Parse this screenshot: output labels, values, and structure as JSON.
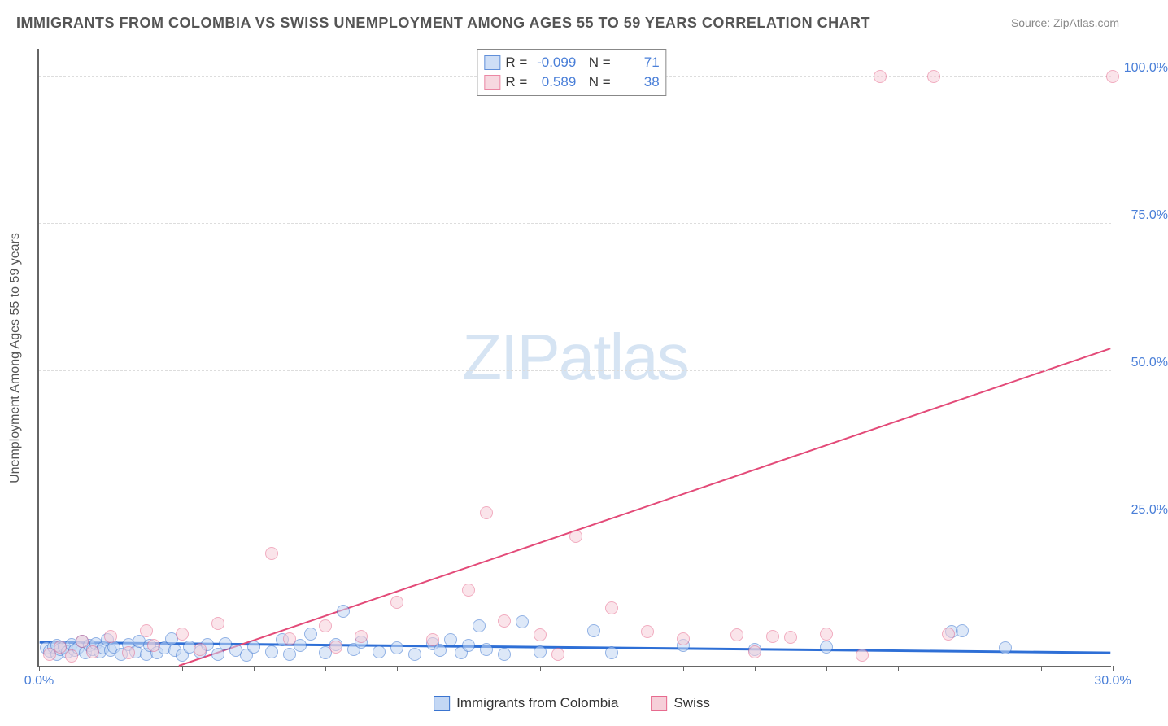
{
  "title": "IMMIGRANTS FROM COLOMBIA VS SWISS UNEMPLOYMENT AMONG AGES 55 TO 59 YEARS CORRELATION CHART",
  "source": "Source: ZipAtlas.com",
  "ylabel": "Unemployment Among Ages 55 to 59 years",
  "watermark_bold": "ZIP",
  "watermark_light": "atlas",
  "chart": {
    "type": "scatter",
    "background_color": "#ffffff",
    "grid_color": "#dddddd",
    "axis_color": "#666666",
    "tick_label_color": "#4a7fd8",
    "xlim": [
      0,
      30
    ],
    "ylim": [
      0,
      105
    ],
    "xtick_start_label": "0.0%",
    "xtick_end_label": "30.0%",
    "xtick_minor_step": 2,
    "yticks": [
      {
        "v": 25,
        "label": "25.0%"
      },
      {
        "v": 50,
        "label": "50.0%"
      },
      {
        "v": 75,
        "label": "75.0%"
      },
      {
        "v": 100,
        "label": "100.0%"
      }
    ],
    "point_radius": 8,
    "point_stroke_width": 1.5,
    "series": [
      {
        "name": "Immigrants from Colombia",
        "fill": "#c3d7f4",
        "stroke": "#3a74d0",
        "fill_opacity": 0.55,
        "r_value": "-0.099",
        "n_value": "71",
        "trend": {
          "x1": 0,
          "y1": 4.0,
          "x2": 30,
          "y2": 2.2,
          "color": "#2e6fd6",
          "width": 3
        },
        "points": [
          [
            0.2,
            3.0
          ],
          [
            0.3,
            2.5
          ],
          [
            0.4,
            3.2
          ],
          [
            0.5,
            2.0
          ],
          [
            0.5,
            3.5
          ],
          [
            0.6,
            2.8
          ],
          [
            0.7,
            3.2
          ],
          [
            0.8,
            2.4
          ],
          [
            0.9,
            3.6
          ],
          [
            1.0,
            2.6
          ],
          [
            1.1,
            3.0
          ],
          [
            1.2,
            4.1
          ],
          [
            1.3,
            2.2
          ],
          [
            1.4,
            3.4
          ],
          [
            1.5,
            2.8
          ],
          [
            1.6,
            3.8
          ],
          [
            1.7,
            2.4
          ],
          [
            1.8,
            3.0
          ],
          [
            1.9,
            4.4
          ],
          [
            2.0,
            2.6
          ],
          [
            2.1,
            3.2
          ],
          [
            2.3,
            2.0
          ],
          [
            2.5,
            3.6
          ],
          [
            2.7,
            2.4
          ],
          [
            2.8,
            4.2
          ],
          [
            3.0,
            2.0
          ],
          [
            3.1,
            3.4
          ],
          [
            3.3,
            2.2
          ],
          [
            3.5,
            3.0
          ],
          [
            3.7,
            4.6
          ],
          [
            3.8,
            2.6
          ],
          [
            4.0,
            1.8
          ],
          [
            4.2,
            3.2
          ],
          [
            4.5,
            2.4
          ],
          [
            4.7,
            3.6
          ],
          [
            5.0,
            2.0
          ],
          [
            5.2,
            3.8
          ],
          [
            5.5,
            2.6
          ],
          [
            5.8,
            1.8
          ],
          [
            6.0,
            3.2
          ],
          [
            6.5,
            2.4
          ],
          [
            6.8,
            4.4
          ],
          [
            7.0,
            2.0
          ],
          [
            7.3,
            3.4
          ],
          [
            7.6,
            5.4
          ],
          [
            8.0,
            2.2
          ],
          [
            8.3,
            3.6
          ],
          [
            8.5,
            9.2
          ],
          [
            8.8,
            2.8
          ],
          [
            9.0,
            4.0
          ],
          [
            9.5,
            2.4
          ],
          [
            10.0,
            3.0
          ],
          [
            10.5,
            2.0
          ],
          [
            11.0,
            3.8
          ],
          [
            11.2,
            2.6
          ],
          [
            11.5,
            4.4
          ],
          [
            11.8,
            2.2
          ],
          [
            12.0,
            3.4
          ],
          [
            12.3,
            6.8
          ],
          [
            12.5,
            2.8
          ],
          [
            13.0,
            2.0
          ],
          [
            13.5,
            7.4
          ],
          [
            14.0,
            2.4
          ],
          [
            15.5,
            6.0
          ],
          [
            16.0,
            2.2
          ],
          [
            18.0,
            3.5
          ],
          [
            20.0,
            2.8
          ],
          [
            22.0,
            3.2
          ],
          [
            25.5,
            5.8
          ],
          [
            25.8,
            6.0
          ],
          [
            27.0,
            3.0
          ]
        ]
      },
      {
        "name": "Swiss",
        "fill": "#f6cfd9",
        "stroke": "#e76a8e",
        "fill_opacity": 0.55,
        "r_value": "0.589",
        "n_value": "38",
        "trend": {
          "x1": 3.9,
          "y1": 0,
          "x2": 30,
          "y2": 54.0,
          "color": "#e34a78",
          "width": 2
        },
        "points": [
          [
            0.3,
            2.0
          ],
          [
            0.6,
            3.2
          ],
          [
            0.9,
            1.6
          ],
          [
            1.2,
            4.2
          ],
          [
            1.5,
            2.4
          ],
          [
            2.0,
            5.0
          ],
          [
            2.5,
            2.2
          ],
          [
            3.0,
            6.0
          ],
          [
            3.2,
            3.4
          ],
          [
            4.0,
            5.4
          ],
          [
            4.5,
            2.8
          ],
          [
            5.0,
            7.2
          ],
          [
            6.5,
            19.0
          ],
          [
            7.0,
            4.6
          ],
          [
            8.0,
            6.8
          ],
          [
            8.3,
            3.2
          ],
          [
            9.0,
            5.0
          ],
          [
            10.0,
            10.8
          ],
          [
            11.0,
            4.4
          ],
          [
            12.0,
            12.8
          ],
          [
            12.5,
            26.0
          ],
          [
            13.0,
            7.6
          ],
          [
            14.0,
            5.2
          ],
          [
            14.5,
            2.0
          ],
          [
            15.0,
            22.0
          ],
          [
            16.0,
            9.8
          ],
          [
            17.0,
            5.8
          ],
          [
            18.0,
            4.6
          ],
          [
            19.5,
            5.2
          ],
          [
            20.0,
            2.4
          ],
          [
            20.5,
            5.0
          ],
          [
            21.0,
            4.8
          ],
          [
            22.0,
            5.4
          ],
          [
            23.0,
            1.8
          ],
          [
            23.5,
            100.0
          ],
          [
            25.0,
            100.0
          ],
          [
            25.4,
            5.4
          ],
          [
            30.0,
            100.0
          ]
        ]
      }
    ]
  },
  "legend_top": {
    "r_label": "R",
    "n_label": "N",
    "eq": "="
  },
  "legend_bottom": {
    "item1": "Immigrants from Colombia",
    "item2": "Swiss"
  }
}
